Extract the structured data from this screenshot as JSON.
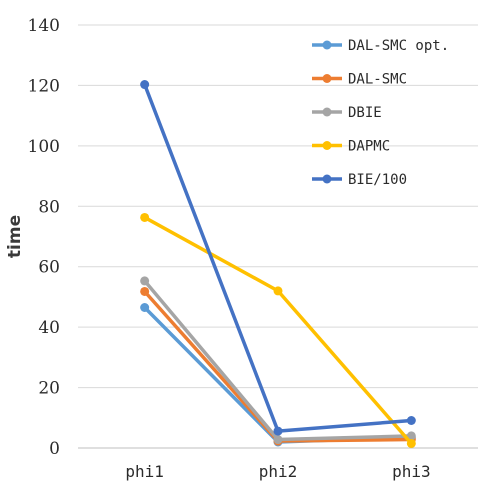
{
  "chart_data": {
    "type": "line",
    "title": "",
    "xlabel": "",
    "ylabel": "time",
    "categories": [
      "phi1",
      "phi2",
      "phi3"
    ],
    "ylim": [
      0,
      140
    ],
    "yticks": [
      0,
      20,
      40,
      60,
      80,
      100,
      120,
      140
    ],
    "grid": true,
    "legend_position": "top-right",
    "series": [
      {
        "name": "DAL-SMC opt.",
        "color": "#5b9bd5",
        "values": [
          46.5,
          2.0,
          3.5
        ]
      },
      {
        "name": "DAL-SMC",
        "color": "#ed7d31",
        "values": [
          51.8,
          2.3,
          2.8
        ]
      },
      {
        "name": "DBIE",
        "color": "#a5a5a5",
        "values": [
          55.3,
          2.8,
          4.0
        ]
      },
      {
        "name": "DAPMC",
        "color": "#ffc000",
        "values": [
          76.3,
          52.0,
          1.5
        ]
      },
      {
        "name": "BIE/100",
        "color": "#4472c4",
        "values": [
          120.3,
          5.6,
          9.1
        ]
      }
    ]
  }
}
